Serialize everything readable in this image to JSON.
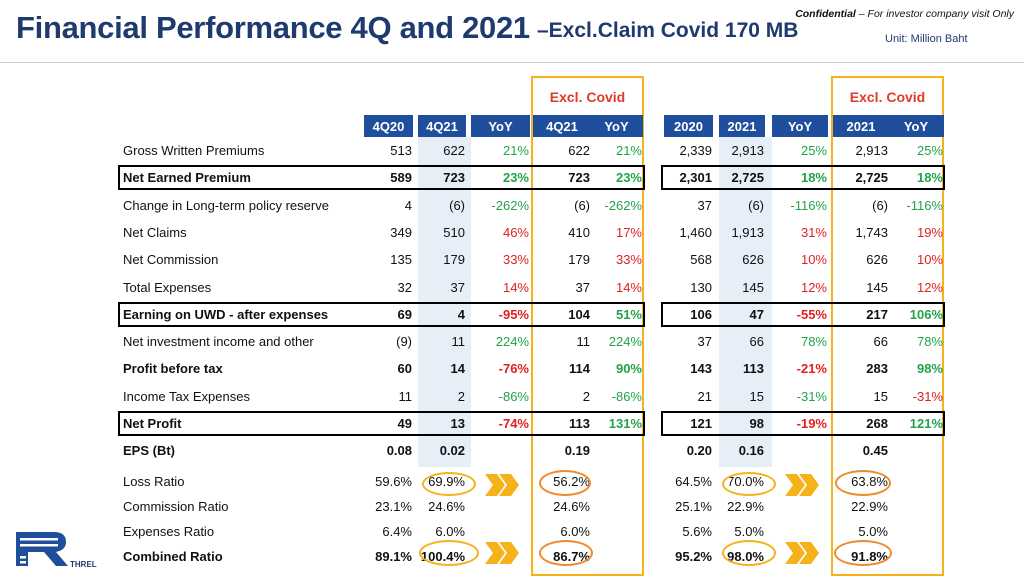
{
  "header": {
    "title": "Financial Performance 4Q and 2021",
    "subtitle": "–Excl.Claim Covid 170 MB",
    "confidential_bold": "Confidential",
    "confidential_rest": " – For investor company visit Only",
    "unit": "Unit: Million Baht"
  },
  "excl_label": "Excl. Covid",
  "columns": [
    "4Q20",
    "4Q21",
    "YoY",
    "4Q21",
    "YoY",
    "2020",
    "2021",
    "YoY",
    "2021",
    "YoY"
  ],
  "rows": [
    {
      "label": "Gross Written Premiums",
      "bold": false,
      "outline": false,
      "values": [
        "513",
        "622",
        "21%",
        "622",
        "21%",
        "2,339",
        "2,913",
        "25%",
        "2,913",
        "25%"
      ],
      "colors": [
        "",
        "",
        "g",
        "",
        "g",
        "",
        "",
        "g",
        "",
        "g"
      ]
    },
    {
      "label": "Net Earned Premium",
      "bold": true,
      "outline": true,
      "values": [
        "589",
        "723",
        "23%",
        "723",
        "23%",
        "2,301",
        "2,725",
        "18%",
        "2,725",
        "18%"
      ],
      "colors": [
        "",
        "",
        "g",
        "",
        "g",
        "",
        "",
        "g",
        "",
        "g"
      ]
    },
    {
      "label": "Change in Long-term policy reserve",
      "bold": false,
      "outline": false,
      "values": [
        "4",
        "(6)",
        "-262%",
        "(6)",
        "-262%",
        "37",
        "(6)",
        "-116%",
        "(6)",
        "-116%"
      ],
      "colors": [
        "",
        "",
        "g",
        "",
        "g",
        "",
        "",
        "g",
        "",
        "g"
      ]
    },
    {
      "label": "Net Claims",
      "bold": false,
      "outline": false,
      "values": [
        "349",
        "510",
        "46%",
        "410",
        "17%",
        "1,460",
        "1,913",
        "31%",
        "1,743",
        "19%"
      ],
      "colors": [
        "",
        "",
        "r",
        "",
        "r",
        "",
        "",
        "r",
        "",
        "r"
      ]
    },
    {
      "label": "Net Commission",
      "bold": false,
      "outline": false,
      "values": [
        "135",
        "179",
        "33%",
        "179",
        "33%",
        "568",
        "626",
        "10%",
        "626",
        "10%"
      ],
      "colors": [
        "",
        "",
        "r",
        "",
        "r",
        "",
        "",
        "r",
        "",
        "r"
      ]
    },
    {
      "label": "Total Expenses",
      "bold": false,
      "outline": false,
      "values": [
        "32",
        "37",
        "14%",
        "37",
        "14%",
        "130",
        "145",
        "12%",
        "145",
        "12%"
      ],
      "colors": [
        "",
        "",
        "r",
        "",
        "r",
        "",
        "",
        "r",
        "",
        "r"
      ]
    },
    {
      "label": "Earning on UWD - after expenses",
      "bold": true,
      "outline": true,
      "values": [
        "69",
        "4",
        "-95%",
        "104",
        "51%",
        "106",
        "47",
        "-55%",
        "217",
        "106%"
      ],
      "colors": [
        "",
        "",
        "r",
        "",
        "g",
        "",
        "",
        "r",
        "",
        "g"
      ]
    },
    {
      "label": "Net investment income and other",
      "bold": false,
      "outline": false,
      "values": [
        "(9)",
        "11",
        "224%",
        "11",
        "224%",
        "37",
        "66",
        "78%",
        "66",
        "78%"
      ],
      "colors": [
        "",
        "",
        "g",
        "",
        "g",
        "",
        "",
        "g",
        "",
        "g"
      ]
    },
    {
      "label": "Profit before tax",
      "bold": true,
      "outline": false,
      "values": [
        "60",
        "14",
        "-76%",
        "114",
        "90%",
        "143",
        "113",
        "-21%",
        "283",
        "98%"
      ],
      "colors": [
        "",
        "",
        "r",
        "",
        "g",
        "",
        "",
        "r",
        "",
        "g"
      ]
    },
    {
      "label": "Income Tax Expenses",
      "bold": false,
      "outline": false,
      "values": [
        "11",
        "2",
        "-86%",
        "2",
        "-86%",
        "21",
        "15",
        "-31%",
        "15",
        "-31%"
      ],
      "colors": [
        "",
        "",
        "g",
        "",
        "g",
        "",
        "",
        "g",
        "",
        "r"
      ]
    },
    {
      "label": "Net Profit",
      "bold": true,
      "outline": true,
      "values": [
        "49",
        "13",
        "-74%",
        "113",
        "131%",
        "121",
        "98",
        "-19%",
        "268",
        "121%"
      ],
      "colors": [
        "",
        "",
        "r",
        "",
        "g",
        "",
        "",
        "r",
        "",
        "g"
      ]
    },
    {
      "label": "EPS (Bt)",
      "bold": true,
      "outline": false,
      "values": [
        "0.08",
        "0.02",
        "",
        "0.19",
        "",
        "0.20",
        "0.16",
        "",
        "0.45",
        ""
      ],
      "colors": [
        "",
        "",
        "",
        "",
        "",
        "",
        "",
        "",
        "",
        ""
      ]
    }
  ],
  "ratios": [
    {
      "label": "Loss Ratio",
      "bold": false,
      "values": [
        "59.6%",
        "69.9%",
        "",
        "56.2%",
        "",
        "64.5%",
        "70.0%",
        "",
        "63.8%",
        ""
      ]
    },
    {
      "label": "Commission Ratio",
      "bold": false,
      "values": [
        "23.1%",
        "24.6%",
        "",
        "24.6%",
        "",
        "25.1%",
        "22.9%",
        "",
        "22.9%",
        ""
      ]
    },
    {
      "label": "Expenses Ratio",
      "bold": false,
      "values": [
        "6.4%",
        "6.0%",
        "",
        "6.0%",
        "",
        "5.6%",
        "5.0%",
        "",
        "5.0%",
        ""
      ]
    },
    {
      "label": "Combined Ratio",
      "bold": true,
      "values": [
        "89.1%",
        "100.4%",
        "",
        "86.7%",
        "",
        "95.2%",
        "98.0%",
        "",
        "91.8%",
        ""
      ]
    }
  ],
  "logo_text": "THREL",
  "colors": {
    "navy": "#1f3a6e",
    "header_blue": "#1f4e9c",
    "green": "#22a34a",
    "red": "#e02020",
    "gold": "#f6b21a",
    "orange": "#ef8a2e"
  }
}
